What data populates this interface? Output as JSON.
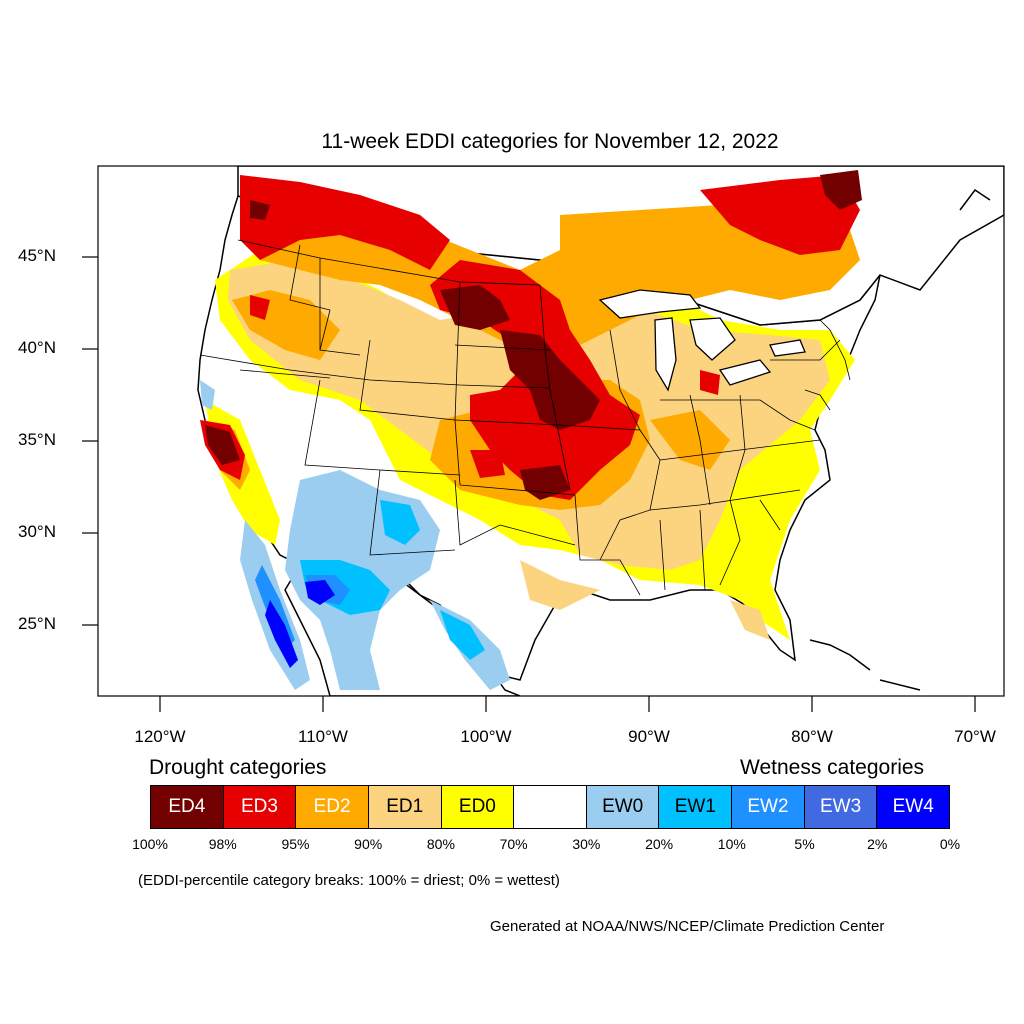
{
  "title": "11-week EDDI categories for November 12, 2022",
  "lat_labels": [
    "45°N",
    "40°N",
    "35°N",
    "30°N",
    "25°N"
  ],
  "lon_labels": [
    "120°W",
    "110°W",
    "100°W",
    "90°W",
    "80°W",
    "70°W"
  ],
  "legend": {
    "drought_title": "Drought categories",
    "wetness_title": "Wetness categories",
    "categories": [
      {
        "label": "ED4",
        "color": "#730000",
        "text_color": "#ffffff"
      },
      {
        "label": "ED3",
        "color": "#e60000",
        "text_color": "#ffffff"
      },
      {
        "label": "ED2",
        "color": "#ffaa00",
        "text_color": "#ffffff"
      },
      {
        "label": "ED1",
        "color": "#fcd37f",
        "text_color": "#000000"
      },
      {
        "label": "ED0",
        "color": "#ffff00",
        "text_color": "#000000"
      },
      {
        "label": "",
        "color": "#ffffff",
        "text_color": "#000000"
      },
      {
        "label": "EW0",
        "color": "#9bcdf0",
        "text_color": "#000000"
      },
      {
        "label": "EW1",
        "color": "#00c0ff",
        "text_color": "#000000"
      },
      {
        "label": "EW2",
        "color": "#1e90ff",
        "text_color": "#ffffff"
      },
      {
        "label": "EW3",
        "color": "#4169e1",
        "text_color": "#ffffff"
      },
      {
        "label": "EW4",
        "color": "#0000ff",
        "text_color": "#ffffff"
      }
    ],
    "breaks": [
      "100%",
      "98%",
      "95%",
      "90%",
      "80%",
      "70%",
      "30%",
      "20%",
      "10%",
      "5%",
      "2%",
      "0%"
    ],
    "note": "(EDDI-percentile category breaks: 100% = driest; 0% = wettest)"
  },
  "credit": "Generated at NOAA/NWS/NCEP/Climate Prediction Center"
}
